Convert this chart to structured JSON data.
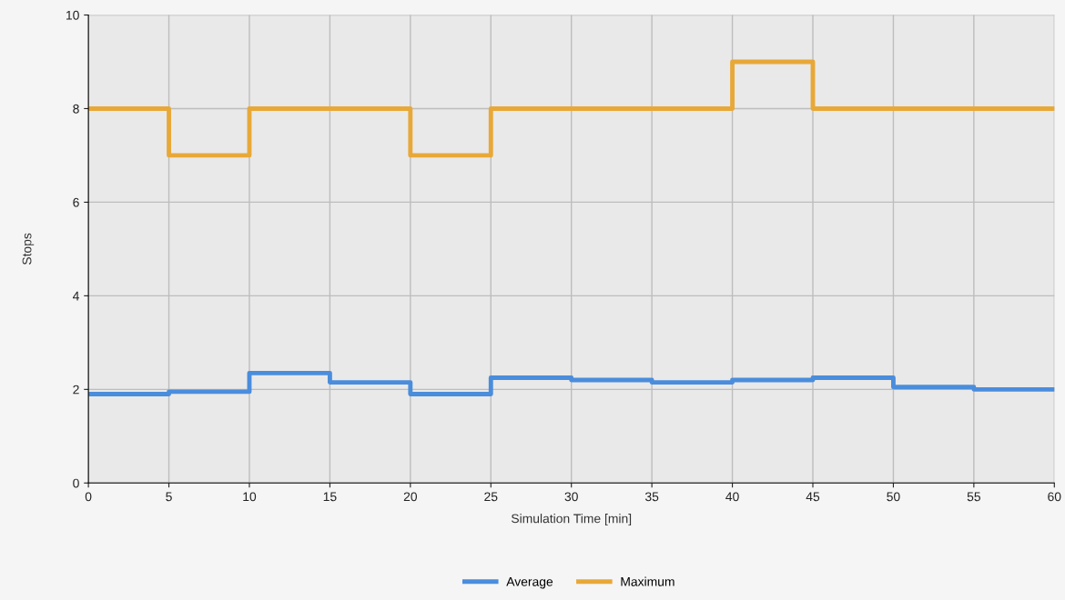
{
  "chart_data": {
    "type": "step",
    "xlabel": "Simulation Time [min]",
    "ylabel": "Stops",
    "x": [
      0,
      5,
      10,
      15,
      20,
      25,
      30,
      35,
      40,
      45,
      50,
      55,
      60
    ],
    "series": [
      {
        "name": "Average",
        "color": "#4a8ddc",
        "values": [
          1.9,
          1.95,
          2.35,
          2.15,
          1.9,
          2.25,
          2.2,
          2.15,
          2.2,
          2.25,
          2.05,
          2.0,
          2.0
        ]
      },
      {
        "name": "Maximum",
        "color": "#e8a838",
        "values": [
          8,
          7,
          8,
          8,
          7,
          8,
          8,
          8,
          9,
          8,
          8,
          8,
          8
        ]
      }
    ],
    "xlim": [
      0,
      60
    ],
    "xticks": [
      0,
      5,
      10,
      15,
      20,
      25,
      30,
      35,
      40,
      45,
      50,
      55,
      60
    ],
    "ylim": [
      0,
      10
    ],
    "yticks": [
      0,
      2,
      4,
      6,
      8,
      10
    ],
    "grid": true,
    "legend": "bottom",
    "marker": "none",
    "line_style": "solid"
  }
}
